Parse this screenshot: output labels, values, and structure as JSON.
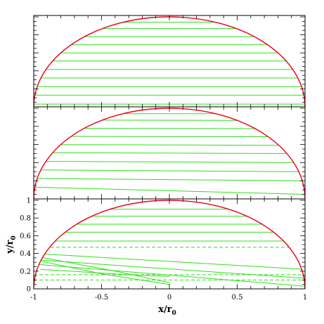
{
  "chart_data": [
    {
      "type": "line",
      "panel": "top",
      "xlim": [
        -1,
        1
      ],
      "ylim": [
        0,
        1
      ],
      "boundary": {
        "shape": "semicircle",
        "radius": 1,
        "color": "#e8001a"
      },
      "streamline_color": "#2fe01a",
      "streamlines": [
        {
          "y0": 0.03,
          "y1": 0.03,
          "style": "solid"
        },
        {
          "y0": 0.13,
          "y1": 0.13,
          "style": "solid"
        },
        {
          "y0": 0.225,
          "y1": 0.225,
          "style": "solid"
        },
        {
          "y0": 0.32,
          "y1": 0.32,
          "style": "solid"
        },
        {
          "y0": 0.415,
          "y1": 0.415,
          "style": "solid"
        },
        {
          "y0": 0.51,
          "y1": 0.51,
          "style": "solid"
        },
        {
          "y0": 0.6,
          "y1": 0.6,
          "style": "solid"
        },
        {
          "y0": 0.69,
          "y1": 0.69,
          "style": "solid"
        },
        {
          "y0": 0.78,
          "y1": 0.78,
          "style": "solid"
        },
        {
          "y0": 0.87,
          "y1": 0.87,
          "style": "solid"
        },
        {
          "y0": 0.94,
          "y1": 0.94,
          "style": "solid"
        }
      ]
    },
    {
      "type": "line",
      "panel": "middle",
      "xlim": [
        -1,
        1
      ],
      "ylim": [
        0,
        1
      ],
      "boundary": {
        "shape": "semicircle",
        "radius": 1,
        "color": "#e8001a"
      },
      "streamline_color": "#2fe01a",
      "streamlines": [
        {
          "y0": 0.13,
          "y1": 0.05,
          "style": "solid"
        },
        {
          "y0": 0.225,
          "y1": 0.2,
          "style": "solid"
        },
        {
          "y0": 0.32,
          "y1": 0.3,
          "style": "solid"
        },
        {
          "y0": 0.415,
          "y1": 0.4,
          "style": "solid"
        },
        {
          "y0": 0.51,
          "y1": 0.5,
          "style": "solid"
        },
        {
          "y0": 0.6,
          "y1": 0.59,
          "style": "solid"
        },
        {
          "y0": 0.69,
          "y1": 0.685,
          "style": "solid"
        },
        {
          "y0": 0.78,
          "y1": 0.775,
          "style": "solid"
        },
        {
          "y0": 0.87,
          "y1": 0.865,
          "style": "solid"
        },
        {
          "y0": 0.94,
          "y1": 0.94,
          "style": "solid"
        }
      ]
    },
    {
      "type": "line",
      "panel": "bottom",
      "xlabel": "x/r",
      "xlabel_sub": "0",
      "ylabel": "y/r",
      "ylabel_sub": "0",
      "xlim": [
        -1,
        1
      ],
      "ylim": [
        0,
        1
      ],
      "xticks": [
        "-1",
        "-0.5",
        "0",
        "0.5",
        "1"
      ],
      "yticks": [
        "0",
        "0.2",
        "0.4",
        "0.6",
        "0.8",
        "1"
      ],
      "boundary": {
        "shape": "semicircle",
        "radius": 1,
        "color": "#e8001a"
      },
      "streamline_color": "#2fe01a",
      "streamlines": [
        {
          "y0": 0.1,
          "y1": 0.1,
          "style": "dashed"
        },
        {
          "y0": 0.16,
          "y1": 0.16,
          "style": "dashed"
        },
        {
          "y0": 0.28,
          "y1": 0.03,
          "style": "solid"
        },
        {
          "y0": 0.33,
          "y1": 0.12,
          "style": "solid"
        },
        {
          "y0": 0.4,
          "y1": 0.22,
          "style": "solid"
        },
        {
          "y0": 0.47,
          "y1": 0.47,
          "style": "dashed"
        },
        {
          "y0": 0.54,
          "y1": 0.54,
          "style": "solid"
        },
        {
          "y0": 0.64,
          "y1": 0.64,
          "style": "solid"
        },
        {
          "y0": 0.73,
          "y1": 0.73,
          "style": "solid"
        },
        {
          "y0": 0.82,
          "y1": 0.82,
          "style": "solid"
        },
        {
          "y0": 0.9,
          "y1": 0.9,
          "style": "solid"
        }
      ],
      "trajectories": [
        {
          "points": [
            [
              -0.96,
              0.36
            ],
            [
              -0.4,
              0.2
            ],
            [
              0.0,
              0.07
            ]
          ],
          "style": "solid"
        },
        {
          "points": [
            [
              -0.94,
              0.31
            ],
            [
              -0.5,
              0.17
            ],
            [
              0.0,
              0.05
            ]
          ],
          "style": "solid"
        },
        {
          "points": [
            [
              -0.95,
              0.22
            ],
            [
              -0.3,
              0.16
            ],
            [
              0.0,
              0.14
            ]
          ],
          "style": "solid"
        }
      ]
    }
  ]
}
